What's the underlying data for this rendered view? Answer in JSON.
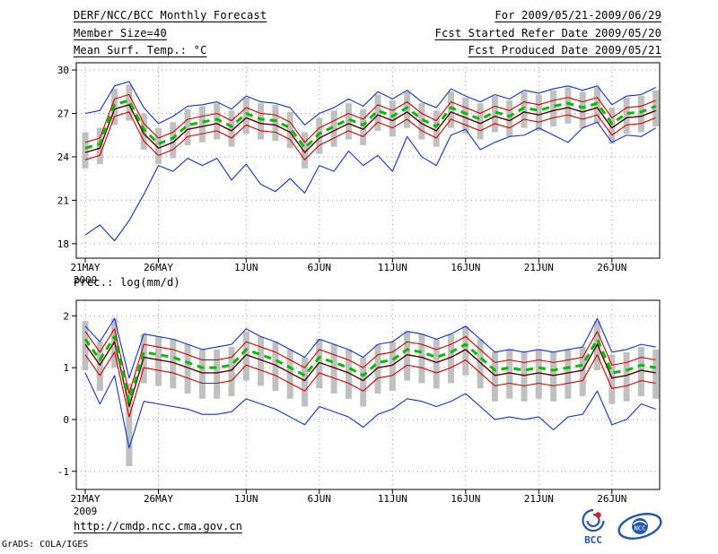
{
  "header": {
    "left": [
      "DERF/NCC/BCC Monthly Forecast",
      "Member Size=40",
      "Mean Surf. Temp.: °C"
    ],
    "right": [
      "For 2009/05/21-2009/06/29",
      "Fcst Started Refer Date 2009/05/20",
      "Fcst Produced Date 2009/05/21"
    ]
  },
  "footer": {
    "url": "http://cmdp.ncc.cma.gov.cn",
    "credit": "GrADS: COLA/IGES",
    "bcc_label": "BCC",
    "ncc_label": "NCC"
  },
  "colors": {
    "ensemble_spread": "#c0c0c0",
    "extreme_line": "#1133cc",
    "quartile_line": "#d40000",
    "control_line": "#5a0000",
    "ensemble_mean": "#00bb00",
    "grid": "#9a9a9a",
    "frame": "#000000"
  },
  "chart_data": [
    {
      "type": "line",
      "title": "Mean Surf. Temp.: °C",
      "xlabel": "",
      "ylabel": "",
      "x_count": 40,
      "x_ticks": [
        {
          "label": "21MAY",
          "index": 0
        },
        {
          "label": "26MAY",
          "index": 5
        },
        {
          "label": "1JUN",
          "index": 11
        },
        {
          "label": "6JUN",
          "index": 16
        },
        {
          "label": "11JUN",
          "index": 21
        },
        {
          "label": "16JUN",
          "index": 26
        },
        {
          "label": "21JUN",
          "index": 31
        },
        {
          "label": "26JUN",
          "index": 36
        }
      ],
      "x_sub_label": "2009",
      "y_ticks": [
        18,
        21,
        24,
        27,
        30
      ],
      "ylim": [
        17.0,
        30.5
      ],
      "grid": true,
      "legend": "none",
      "series": [
        {
          "name": "ensemble-spread",
          "type": "bar",
          "color": "#c0c0c0",
          "low": [
            23.2,
            23.5,
            26.2,
            26.5,
            24.5,
            23.5,
            23.9,
            24.8,
            25.0,
            25.2,
            24.7,
            25.6,
            25.2,
            25.1,
            24.6,
            23.2,
            24.2,
            24.7,
            25.2,
            24.8,
            25.8,
            25.4,
            26.0,
            25.2,
            24.7,
            26.0,
            25.6,
            25.2,
            25.7,
            25.4,
            26.0,
            25.8,
            26.1,
            26.3,
            26.0,
            26.3,
            24.9,
            25.6,
            25.7,
            26.1
          ],
          "high": [
            25.7,
            26.0,
            28.7,
            29.0,
            27.0,
            26.0,
            26.4,
            27.3,
            27.5,
            27.7,
            27.2,
            28.1,
            27.7,
            27.6,
            27.1,
            25.7,
            26.7,
            27.2,
            27.7,
            27.3,
            28.3,
            27.9,
            28.5,
            27.7,
            27.2,
            28.5,
            28.1,
            27.7,
            28.2,
            27.9,
            28.5,
            28.3,
            28.6,
            28.8,
            28.5,
            28.8,
            27.4,
            28.1,
            28.2,
            28.6
          ]
        },
        {
          "name": "ensemble-max",
          "type": "line",
          "color": "#1133cc",
          "width": 1.1,
          "values": [
            27.0,
            27.2,
            28.9,
            29.2,
            27.4,
            26.3,
            26.8,
            27.5,
            27.6,
            27.8,
            27.3,
            28.2,
            27.8,
            27.7,
            27.4,
            26.2,
            27.0,
            27.4,
            28.0,
            27.5,
            28.5,
            28.0,
            28.6,
            27.8,
            27.4,
            28.7,
            28.2,
            27.8,
            28.3,
            28.0,
            28.6,
            28.4,
            28.7,
            28.9,
            28.6,
            28.9,
            27.6,
            28.2,
            28.3,
            28.8
          ]
        },
        {
          "name": "ensemble-min",
          "type": "line",
          "color": "#1133cc",
          "width": 1.1,
          "values": [
            18.6,
            19.3,
            18.2,
            19.6,
            21.4,
            23.4,
            23.0,
            23.9,
            23.4,
            23.9,
            22.4,
            23.5,
            22.1,
            21.6,
            22.5,
            21.5,
            23.4,
            23.0,
            24.4,
            23.4,
            24.1,
            23.0,
            25.4,
            24.0,
            23.4,
            25.5,
            25.9,
            24.5,
            25.0,
            25.4,
            25.5,
            26.0,
            25.5,
            25.0,
            26.0,
            26.4,
            25.0,
            25.5,
            25.4,
            26.0
          ]
        },
        {
          "name": "upper-quartile",
          "type": "line",
          "color": "#d40000",
          "width": 1.1,
          "values": [
            25.0,
            25.3,
            28.0,
            28.3,
            26.3,
            25.3,
            25.7,
            26.6,
            26.8,
            27.0,
            26.5,
            27.4,
            27.0,
            26.9,
            26.4,
            25.0,
            26.0,
            26.5,
            27.0,
            26.6,
            27.6,
            27.2,
            27.8,
            27.0,
            26.5,
            27.8,
            27.4,
            27.0,
            27.5,
            27.2,
            27.8,
            27.6,
            27.9,
            28.1,
            27.8,
            28.1,
            26.7,
            27.4,
            27.5,
            27.9
          ]
        },
        {
          "name": "lower-quartile",
          "type": "line",
          "color": "#d40000",
          "width": 1.1,
          "values": [
            23.8,
            24.1,
            26.8,
            27.1,
            25.1,
            24.1,
            24.5,
            25.4,
            25.6,
            25.8,
            25.3,
            26.2,
            25.8,
            25.7,
            25.2,
            23.8,
            24.8,
            25.3,
            25.8,
            25.4,
            26.4,
            26.0,
            26.6,
            25.8,
            25.3,
            26.6,
            26.2,
            25.8,
            26.3,
            26.0,
            26.6,
            26.4,
            26.7,
            26.9,
            26.6,
            26.9,
            25.5,
            26.2,
            26.3,
            26.7
          ]
        },
        {
          "name": "control-run",
          "type": "line",
          "color": "#5a0000",
          "width": 1.4,
          "values": [
            24.3,
            24.6,
            27.3,
            27.6,
            25.6,
            24.6,
            25.0,
            25.9,
            26.1,
            26.3,
            25.8,
            26.7,
            26.3,
            26.2,
            25.7,
            24.3,
            25.3,
            25.8,
            26.3,
            25.9,
            26.9,
            26.5,
            27.1,
            26.3,
            25.8,
            27.1,
            26.7,
            26.3,
            26.8,
            26.5,
            27.1,
            26.9,
            27.2,
            27.4,
            27.1,
            27.4,
            26.0,
            26.7,
            26.8,
            27.2
          ]
        },
        {
          "name": "ensemble-mean",
          "type": "line",
          "color": "#00bb00",
          "width": 3,
          "dash": "8 6",
          "values": [
            24.6,
            24.9,
            27.6,
            27.9,
            25.9,
            24.9,
            25.3,
            26.2,
            26.4,
            26.6,
            26.1,
            27.0,
            26.6,
            26.5,
            26.0,
            24.6,
            25.6,
            26.1,
            26.6,
            26.2,
            27.2,
            26.8,
            27.4,
            26.6,
            26.1,
            27.4,
            27.0,
            26.6,
            27.1,
            26.8,
            27.4,
            27.2,
            27.5,
            27.7,
            27.4,
            27.7,
            26.3,
            27.0,
            27.1,
            27.5
          ]
        }
      ]
    },
    {
      "type": "line",
      "title": "Prec.: log(mm/d)",
      "xlabel": "",
      "ylabel": "",
      "x_count": 40,
      "x_ticks": [
        {
          "label": "21MAY",
          "index": 0
        },
        {
          "label": "26MAY",
          "index": 5
        },
        {
          "label": "1JUN",
          "index": 11
        },
        {
          "label": "6JUN",
          "index": 16
        },
        {
          "label": "11JUN",
          "index": 21
        },
        {
          "label": "16JUN",
          "index": 26
        },
        {
          "label": "21JUN",
          "index": 31
        },
        {
          "label": "26JUN",
          "index": 36
        }
      ],
      "x_sub_label": "2009",
      "y_ticks": [
        -1,
        0,
        1,
        2
      ],
      "ylim": [
        -1.35,
        2.3
      ],
      "grid": true,
      "legend": "none",
      "series": [
        {
          "name": "ensemble-spread",
          "type": "bar",
          "color": "#c0c0c0",
          "low": [
            0.95,
            0.55,
            1.0,
            -0.9,
            0.7,
            0.65,
            0.6,
            0.5,
            0.4,
            0.4,
            0.45,
            0.75,
            0.65,
            0.55,
            0.4,
            0.25,
            0.6,
            0.5,
            0.4,
            0.25,
            0.5,
            0.55,
            0.75,
            0.7,
            0.6,
            0.7,
            0.85,
            0.6,
            0.35,
            0.4,
            0.35,
            0.4,
            0.35,
            0.4,
            0.45,
            0.95,
            0.3,
            0.35,
            0.45,
            0.4
          ],
          "high": [
            1.9,
            1.5,
            1.95,
            0.7,
            1.65,
            1.6,
            1.55,
            1.45,
            1.35,
            1.35,
            1.4,
            1.7,
            1.6,
            1.5,
            1.35,
            1.2,
            1.55,
            1.45,
            1.35,
            1.2,
            1.45,
            1.5,
            1.7,
            1.65,
            1.55,
            1.65,
            1.8,
            1.55,
            1.3,
            1.35,
            1.3,
            1.35,
            1.3,
            1.35,
            1.4,
            1.9,
            1.25,
            1.3,
            1.4,
            1.35
          ]
        },
        {
          "name": "ensemble-max",
          "type": "line",
          "color": "#1133cc",
          "width": 1.1,
          "values": [
            1.8,
            1.5,
            1.95,
            0.8,
            1.65,
            1.6,
            1.55,
            1.45,
            1.35,
            1.4,
            1.45,
            1.75,
            1.6,
            1.5,
            1.35,
            1.2,
            1.55,
            1.45,
            1.35,
            1.2,
            1.45,
            1.5,
            1.7,
            1.65,
            1.55,
            1.65,
            1.8,
            1.55,
            1.3,
            1.35,
            1.3,
            1.35,
            1.3,
            1.35,
            1.4,
            1.95,
            1.3,
            1.35,
            1.45,
            1.4
          ]
        },
        {
          "name": "ensemble-min",
          "type": "line",
          "color": "#1133cc",
          "width": 1.1,
          "values": [
            0.9,
            0.3,
            0.85,
            -0.55,
            0.35,
            0.3,
            0.25,
            0.2,
            0.1,
            0.1,
            0.15,
            0.4,
            0.3,
            0.2,
            0.05,
            -0.1,
            0.25,
            0.15,
            0.05,
            -0.15,
            0.1,
            0.2,
            0.4,
            0.35,
            0.25,
            0.35,
            0.5,
            0.25,
            0.0,
            0.05,
            0.0,
            0.05,
            -0.2,
            0.05,
            0.1,
            0.55,
            -0.1,
            0.0,
            0.3,
            0.2
          ]
        },
        {
          "name": "upper-quartile",
          "type": "line",
          "color": "#d40000",
          "width": 1.1,
          "values": [
            1.7,
            1.3,
            1.75,
            0.5,
            1.45,
            1.4,
            1.35,
            1.25,
            1.15,
            1.15,
            1.2,
            1.5,
            1.4,
            1.3,
            1.15,
            1.0,
            1.35,
            1.25,
            1.15,
            1.0,
            1.25,
            1.3,
            1.5,
            1.45,
            1.35,
            1.45,
            1.6,
            1.35,
            1.1,
            1.15,
            1.1,
            1.15,
            1.1,
            1.15,
            1.2,
            1.7,
            1.05,
            1.1,
            1.2,
            1.15
          ]
        },
        {
          "name": "lower-quartile",
          "type": "line",
          "color": "#d40000",
          "width": 1.1,
          "values": [
            1.25,
            0.85,
            1.3,
            0.05,
            1.0,
            0.95,
            0.9,
            0.8,
            0.7,
            0.7,
            0.75,
            1.05,
            0.95,
            0.85,
            0.7,
            0.55,
            0.9,
            0.8,
            0.7,
            0.55,
            0.8,
            0.85,
            1.05,
            1.0,
            0.9,
            1.0,
            1.15,
            0.9,
            0.65,
            0.7,
            0.65,
            0.7,
            0.65,
            0.7,
            0.75,
            1.25,
            0.6,
            0.65,
            0.75,
            0.7
          ]
        },
        {
          "name": "control-run",
          "type": "line",
          "color": "#5a0000",
          "width": 1.4,
          "values": [
            1.45,
            1.05,
            1.5,
            0.25,
            1.2,
            1.15,
            1.1,
            1.0,
            0.9,
            0.9,
            0.95,
            1.25,
            1.15,
            1.05,
            0.9,
            0.75,
            1.1,
            1.0,
            0.9,
            0.75,
            1.0,
            1.05,
            1.25,
            1.2,
            1.1,
            1.2,
            1.35,
            1.1,
            0.85,
            0.9,
            0.85,
            0.9,
            0.85,
            0.9,
            0.95,
            1.45,
            0.8,
            0.85,
            0.95,
            0.9
          ]
        },
        {
          "name": "ensemble-mean",
          "type": "line",
          "color": "#00bb00",
          "width": 3,
          "dash": "8 6",
          "values": [
            1.55,
            1.15,
            1.6,
            0.35,
            1.3,
            1.25,
            1.2,
            1.1,
            1.0,
            1.0,
            1.05,
            1.35,
            1.25,
            1.15,
            1.0,
            0.85,
            1.2,
            1.1,
            1.0,
            0.85,
            1.1,
            1.15,
            1.35,
            1.3,
            1.2,
            1.3,
            1.45,
            1.2,
            0.95,
            1.0,
            0.95,
            1.0,
            0.95,
            1.0,
            1.05,
            1.55,
            0.9,
            0.95,
            1.05,
            1.0
          ]
        }
      ]
    }
  ]
}
